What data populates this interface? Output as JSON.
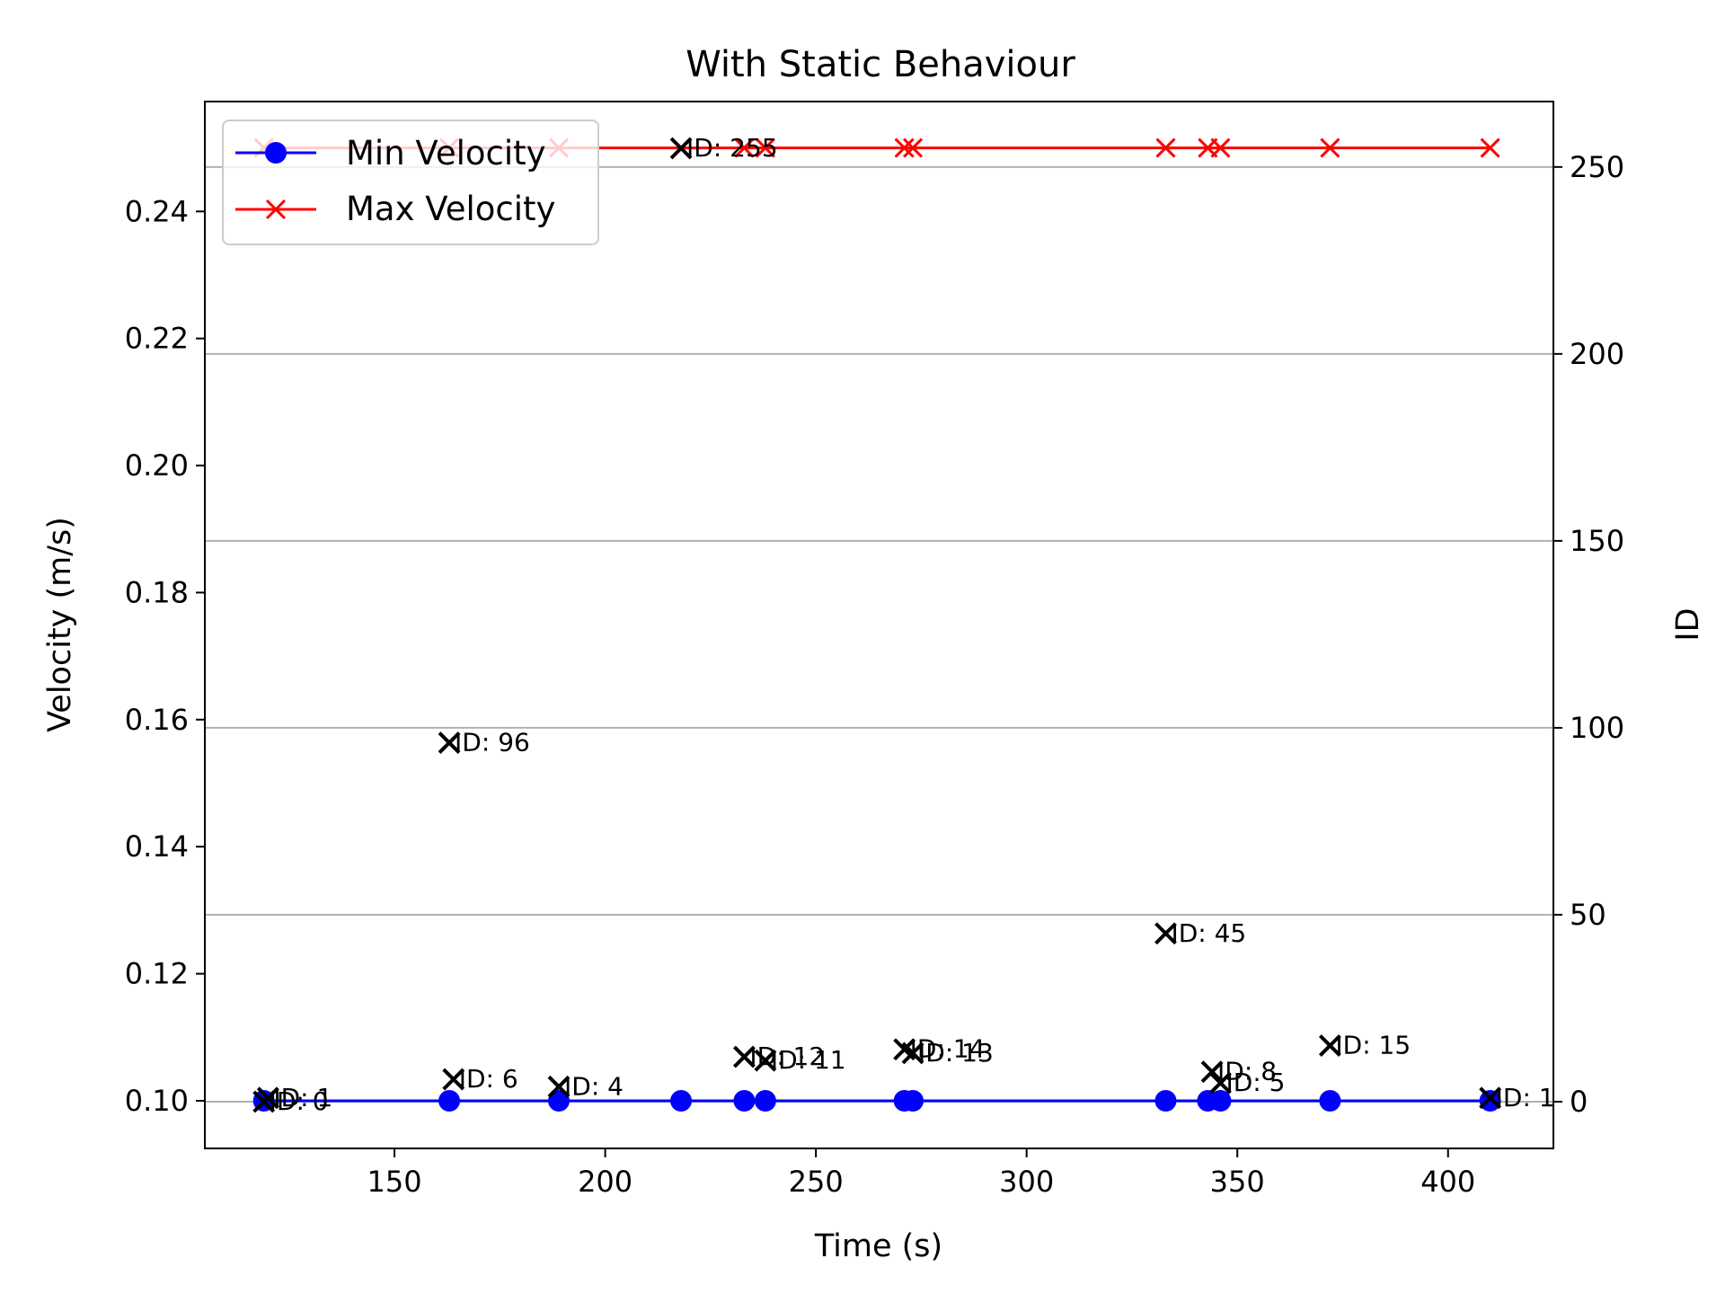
{
  "chart_data": {
    "type": "line",
    "title": "With Static Behaviour",
    "xlabel": "Time (s)",
    "ylabel": "Velocity (m/s)",
    "y2label": "ID",
    "xlim": [
      105,
      425
    ],
    "ylim": [
      0.0925,
      0.2573
    ],
    "y2lim": [
      -12.5,
      267.5
    ],
    "xticks": [
      150,
      200,
      250,
      300,
      350,
      400
    ],
    "xtick_labels": [
      "150",
      "200",
      "250",
      "300",
      "350",
      "400"
    ],
    "yticks": [
      0.1,
      0.12,
      0.14,
      0.16,
      0.18,
      0.2,
      0.22,
      0.24
    ],
    "ytick_labels": [
      "0.10",
      "0.12",
      "0.14",
      "0.16",
      "0.18",
      "0.20",
      "0.22",
      "0.24"
    ],
    "y2ticks": [
      0,
      50,
      100,
      150,
      200,
      250
    ],
    "y2tick_labels": [
      "0",
      "50",
      "100",
      "150",
      "200",
      "250"
    ],
    "grid": "right axis horizontal lines",
    "legend": {
      "position": "upper-left",
      "entries": [
        {
          "label": "Min Velocity",
          "color": "#0000ff",
          "marker": "circle"
        },
        {
          "label": "Max Velocity",
          "color": "#ff0000",
          "marker": "x"
        }
      ]
    },
    "x": [
      119,
      163,
      189,
      218,
      233,
      238,
      271,
      273,
      333,
      343,
      346,
      372,
      410
    ],
    "series": [
      {
        "name": "Min Velocity",
        "axis": "left",
        "color": "#0000ff",
        "marker": "circle",
        "values": [
          0.1,
          0.1,
          0.1,
          0.1,
          0.1,
          0.1,
          0.1,
          0.1,
          0.1,
          0.1,
          0.1,
          0.1,
          0.1
        ]
      },
      {
        "name": "Max Velocity",
        "axis": "left",
        "color": "#ff0000",
        "marker": "x",
        "values": [
          0.25,
          0.25,
          0.25,
          0.25,
          0.25,
          0.25,
          0.25,
          0.25,
          0.25,
          0.25,
          0.25,
          0.25,
          0.25
        ]
      }
    ],
    "id_points": {
      "axis": "right",
      "color": "#000000",
      "marker": "x",
      "points": [
        {
          "x": 119,
          "y": 0,
          "label": "ID: 0"
        },
        {
          "x": 120,
          "y": 1,
          "label": "ID: 1"
        },
        {
          "x": 163,
          "y": 96,
          "label": "ID: 96"
        },
        {
          "x": 164,
          "y": 6,
          "label": "ID: 6"
        },
        {
          "x": 189,
          "y": 4,
          "label": "ID: 4"
        },
        {
          "x": 218,
          "y": 255,
          "label": "ID: 255"
        },
        {
          "x": 233,
          "y": 12,
          "label": "ID: 12"
        },
        {
          "x": 238,
          "y": 11,
          "label": "ID: 11"
        },
        {
          "x": 271,
          "y": 14,
          "label": "ID: 14"
        },
        {
          "x": 273,
          "y": 13,
          "label": "ID: 13"
        },
        {
          "x": 333,
          "y": 45,
          "label": "ID: 45"
        },
        {
          "x": 344,
          "y": 8,
          "label": "ID: 8"
        },
        {
          "x": 346,
          "y": 5,
          "label": "ID: 5"
        },
        {
          "x": 372,
          "y": 15,
          "label": "ID: 15"
        },
        {
          "x": 410,
          "y": 1,
          "label": "ID: 1"
        }
      ]
    }
  }
}
